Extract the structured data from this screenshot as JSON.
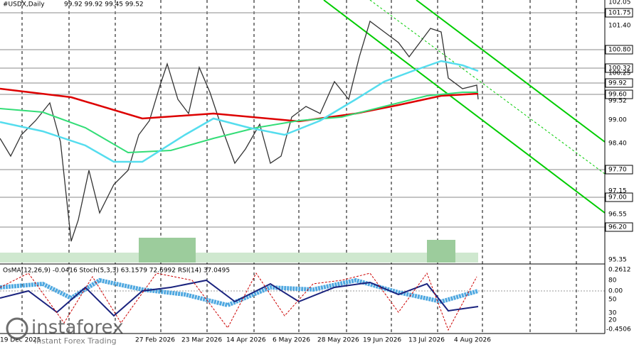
{
  "header": {
    "symbol": "#USDX,Daily",
    "ohlc": "99.92 99.92 99.45 99.52"
  },
  "price_labels": [
    "102.05",
    "101.75",
    "101.40",
    "100.80",
    "100.32",
    "100.25",
    "99.92",
    "99.60",
    "99.52",
    "99.00",
    "98.40",
    "97.70",
    "97.15",
    "97.00",
    "96.55",
    "96.20",
    "95.35"
  ],
  "indicator_header": "OsMA(12,26,9) -0.0416  Stoch(5,3,3) 63.1579 72.6992  RSI(14) 37.0495",
  "indicator_labels": [
    "0.2612",
    "80",
    "0.00",
    "50",
    "30",
    "20",
    "-0.4506"
  ],
  "date_labels": [
    "19 Dec 2025",
    "27 Feb 2026",
    "23 Mar 2026",
    "14 Apr 2026",
    "6 May 2026",
    "28 May 2026",
    "19 Jun 2026",
    "13 Jul 2026",
    "4 Aug 2026"
  ],
  "logo": {
    "name": "instaforex",
    "tagline": "Instant Forex Trading"
  }
}
